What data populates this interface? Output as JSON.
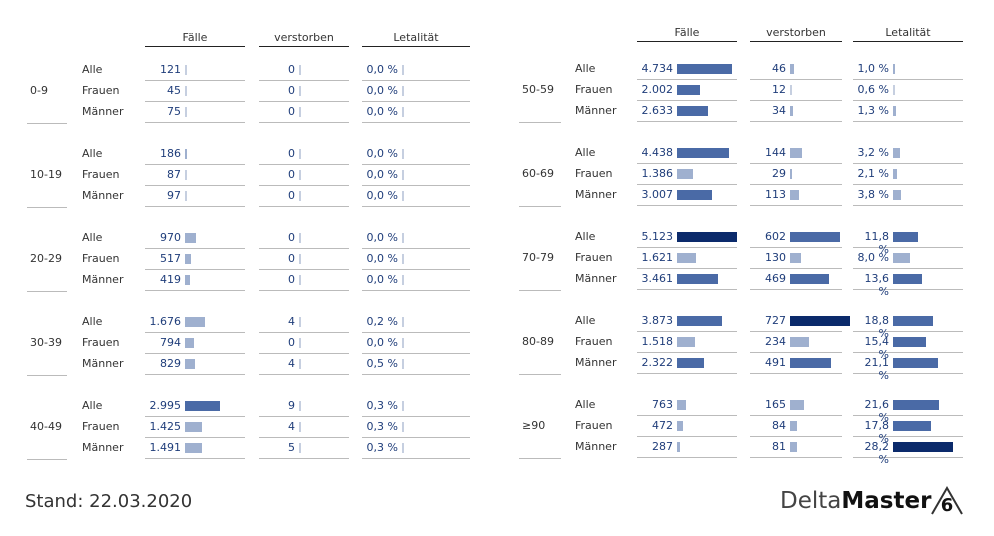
{
  "headers": {
    "cases": "Fälle",
    "deceased": "verstorben",
    "lethality": "Letalität"
  },
  "footer": {
    "date_text": "Stand: 22.03.2020"
  },
  "logo": {
    "part1": "Delta",
    "part2": "Master",
    "mark": "6"
  },
  "colors": {
    "dark": "#0b2a6b",
    "medium": "#4a6aa6",
    "light": "#9fb0cf",
    "tick": "#c6cfe0",
    "text": "#1f3d7a"
  },
  "chart_data": {
    "type": "table",
    "columns": [
      "Fälle",
      "verstorben",
      "Letalität"
    ],
    "groups": [
      {
        "age": "0-9",
        "rows": [
          {
            "label": "Alle",
            "cases": 121,
            "cases_text": "121",
            "deceased": 0,
            "deceased_text": "0",
            "lethality": 0.0,
            "lethality_text": "0,0 %"
          },
          {
            "label": "Frauen",
            "cases": 45,
            "cases_text": "45",
            "deceased": 0,
            "deceased_text": "0",
            "lethality": 0.0,
            "lethality_text": "0,0 %"
          },
          {
            "label": "Männer",
            "cases": 75,
            "cases_text": "75",
            "deceased": 0,
            "deceased_text": "0",
            "lethality": 0.0,
            "lethality_text": "0,0 %"
          }
        ]
      },
      {
        "age": "10-19",
        "rows": [
          {
            "label": "Alle",
            "cases": 186,
            "cases_text": "186",
            "deceased": 0,
            "deceased_text": "0",
            "lethality": 0.0,
            "lethality_text": "0,0 %"
          },
          {
            "label": "Frauen",
            "cases": 87,
            "cases_text": "87",
            "deceased": 0,
            "deceased_text": "0",
            "lethality": 0.0,
            "lethality_text": "0,0 %"
          },
          {
            "label": "Männer",
            "cases": 97,
            "cases_text": "97",
            "deceased": 0,
            "deceased_text": "0",
            "lethality": 0.0,
            "lethality_text": "0,0 %"
          }
        ]
      },
      {
        "age": "20-29",
        "rows": [
          {
            "label": "Alle",
            "cases": 970,
            "cases_text": "970",
            "deceased": 0,
            "deceased_text": "0",
            "lethality": 0.0,
            "lethality_text": "0,0 %"
          },
          {
            "label": "Frauen",
            "cases": 517,
            "cases_text": "517",
            "deceased": 0,
            "deceased_text": "0",
            "lethality": 0.0,
            "lethality_text": "0,0 %"
          },
          {
            "label": "Männer",
            "cases": 419,
            "cases_text": "419",
            "deceased": 0,
            "deceased_text": "0",
            "lethality": 0.0,
            "lethality_text": "0,0 %"
          }
        ]
      },
      {
        "age": "30-39",
        "rows": [
          {
            "label": "Alle",
            "cases": 1676,
            "cases_text": "1.676",
            "deceased": 4,
            "deceased_text": "4",
            "lethality": 0.2,
            "lethality_text": "0,2 %"
          },
          {
            "label": "Frauen",
            "cases": 794,
            "cases_text": "794",
            "deceased": 0,
            "deceased_text": "0",
            "lethality": 0.0,
            "lethality_text": "0,0 %"
          },
          {
            "label": "Männer",
            "cases": 829,
            "cases_text": "829",
            "deceased": 4,
            "deceased_text": "4",
            "lethality": 0.5,
            "lethality_text": "0,5 %"
          }
        ]
      },
      {
        "age": "40-49",
        "rows": [
          {
            "label": "Alle",
            "cases": 2995,
            "cases_text": "2.995",
            "deceased": 9,
            "deceased_text": "9",
            "lethality": 0.3,
            "lethality_text": "0,3 %"
          },
          {
            "label": "Frauen",
            "cases": 1425,
            "cases_text": "1.425",
            "deceased": 4,
            "deceased_text": "4",
            "lethality": 0.3,
            "lethality_text": "0,3 %"
          },
          {
            "label": "Männer",
            "cases": 1491,
            "cases_text": "1.491",
            "deceased": 5,
            "deceased_text": "5",
            "lethality": 0.3,
            "lethality_text": "0,3 %"
          }
        ]
      },
      {
        "age": "50-59",
        "rows": [
          {
            "label": "Alle",
            "cases": 4734,
            "cases_text": "4.734",
            "deceased": 46,
            "deceased_text": "46",
            "lethality": 1.0,
            "lethality_text": "1,0 %"
          },
          {
            "label": "Frauen",
            "cases": 2002,
            "cases_text": "2.002",
            "deceased": 12,
            "deceased_text": "12",
            "lethality": 0.6,
            "lethality_text": "0,6 %"
          },
          {
            "label": "Männer",
            "cases": 2633,
            "cases_text": "2.633",
            "deceased": 34,
            "deceased_text": "34",
            "lethality": 1.3,
            "lethality_text": "1,3 %"
          }
        ]
      },
      {
        "age": "60-69",
        "rows": [
          {
            "label": "Alle",
            "cases": 4438,
            "cases_text": "4.438",
            "deceased": 144,
            "deceased_text": "144",
            "lethality": 3.2,
            "lethality_text": "3,2 %"
          },
          {
            "label": "Frauen",
            "cases": 1386,
            "cases_text": "1.386",
            "deceased": 29,
            "deceased_text": "29",
            "lethality": 2.1,
            "lethality_text": "2,1 %"
          },
          {
            "label": "Männer",
            "cases": 3007,
            "cases_text": "3.007",
            "deceased": 113,
            "deceased_text": "113",
            "lethality": 3.8,
            "lethality_text": "3,8 %"
          }
        ]
      },
      {
        "age": "70-79",
        "rows": [
          {
            "label": "Alle",
            "cases": 5123,
            "cases_text": "5.123",
            "deceased": 602,
            "deceased_text": "602",
            "lethality": 11.8,
            "lethality_text": "11,8 %"
          },
          {
            "label": "Frauen",
            "cases": 1621,
            "cases_text": "1.621",
            "deceased": 130,
            "deceased_text": "130",
            "lethality": 8.0,
            "lethality_text": "8,0 %"
          },
          {
            "label": "Männer",
            "cases": 3461,
            "cases_text": "3.461",
            "deceased": 469,
            "deceased_text": "469",
            "lethality": 13.6,
            "lethality_text": "13,6 %"
          }
        ]
      },
      {
        "age": "80-89",
        "rows": [
          {
            "label": "Alle",
            "cases": 3873,
            "cases_text": "3.873",
            "deceased": 727,
            "deceased_text": "727",
            "lethality": 18.8,
            "lethality_text": "18,8 %"
          },
          {
            "label": "Frauen",
            "cases": 1518,
            "cases_text": "1.518",
            "deceased": 234,
            "deceased_text": "234",
            "lethality": 15.4,
            "lethality_text": "15,4 %"
          },
          {
            "label": "Männer",
            "cases": 2322,
            "cases_text": "2.322",
            "deceased": 491,
            "deceased_text": "491",
            "lethality": 21.1,
            "lethality_text": "21,1 %"
          }
        ]
      },
      {
        "age": "≥90",
        "rows": [
          {
            "label": "Alle",
            "cases": 763,
            "cases_text": "763",
            "deceased": 165,
            "deceased_text": "165",
            "lethality": 21.6,
            "lethality_text": "21,6 %"
          },
          {
            "label": "Frauen",
            "cases": 472,
            "cases_text": "472",
            "deceased": 84,
            "deceased_text": "84",
            "lethality": 17.8,
            "lethality_text": "17,8 %"
          },
          {
            "label": "Männer",
            "cases": 287,
            "cases_text": "287",
            "deceased": 81,
            "deceased_text": "81",
            "lethality": 28.2,
            "lethality_text": "28,2 %"
          }
        ]
      }
    ]
  }
}
